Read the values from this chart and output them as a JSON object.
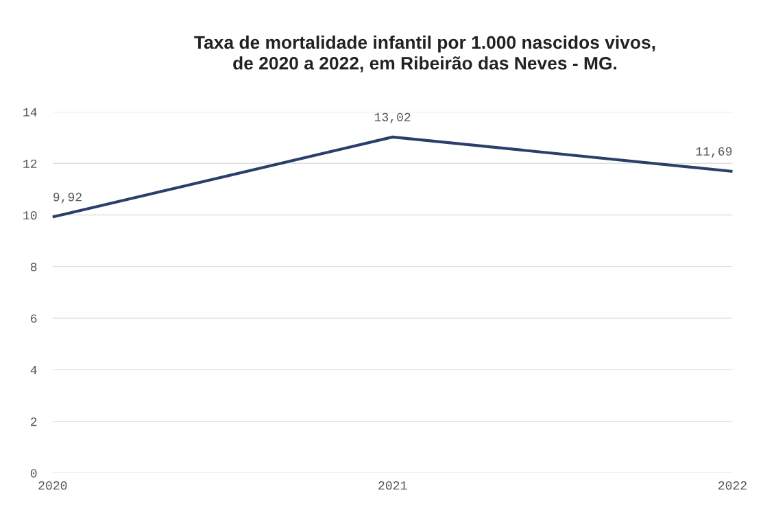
{
  "chart_data": {
    "type": "line",
    "title": "Taxa de mortalidade infantil por 1.000 nascidos vivos,\nde 2020 a 2022, em Ribeirão das Neves - MG.",
    "categories": [
      "2020",
      "2021",
      "2022"
    ],
    "values": [
      9.92,
      13.02,
      11.69
    ],
    "value_labels": [
      "9,92",
      "13,02",
      "11,69"
    ],
    "color": "#2b3f6b",
    "ylim": [
      0,
      14
    ],
    "yticks": [
      0,
      2,
      4,
      6,
      8,
      10,
      12,
      14
    ],
    "grid": "y",
    "legend": false,
    "marker": "none",
    "line_style": "solid"
  }
}
